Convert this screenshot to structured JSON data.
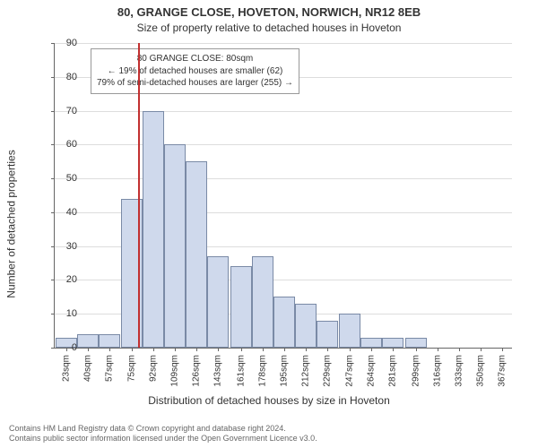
{
  "title_line1": "80, GRANGE CLOSE, HOVETON, NORWICH, NR12 8EB",
  "title_line2": "Size of property relative to detached houses in Hoveton",
  "ylabel": "Number of detached properties",
  "xlabel": "Distribution of detached houses by size in Hoveton",
  "footer_line1": "Contains HM Land Registry data © Crown copyright and database right 2024.",
  "footer_line2": "Contains public sector information licensed under the Open Government Licence v3.0.",
  "annotation": {
    "line1": "80 GRANGE CLOSE: 80sqm",
    "line2": "← 19% of detached houses are smaller (62)",
    "line3": "79% of semi-detached houses are larger (255) →"
  },
  "chart": {
    "type": "histogram",
    "bar_fill": "#cfd9ec",
    "bar_stroke": "#7a8aa6",
    "grid_color": "#dddddd",
    "axis_color": "#666666",
    "background": "#ffffff",
    "marker_color": "#c23030",
    "marker_x": 80,
    "xlim": [
      14,
      375
    ],
    "ylim": [
      0,
      90
    ],
    "ytick_step": 10,
    "bar_half_width": 8.5,
    "categories": [
      "23sqm",
      "40sqm",
      "57sqm",
      "75sqm",
      "92sqm",
      "109sqm",
      "126sqm",
      "143sqm",
      "161sqm",
      "178sqm",
      "195sqm",
      "212sqm",
      "229sqm",
      "247sqm",
      "264sqm",
      "281sqm",
      "299sqm",
      "316sqm",
      "333sqm",
      "350sqm",
      "367sqm"
    ],
    "x_numeric": [
      23,
      40,
      57,
      75,
      92,
      109,
      126,
      143,
      161,
      178,
      195,
      212,
      229,
      247,
      264,
      281,
      299,
      316,
      333,
      350,
      367
    ],
    "values": [
      3,
      4,
      4,
      44,
      70,
      60,
      55,
      27,
      24,
      27,
      15,
      13,
      8,
      10,
      3,
      3,
      3,
      0,
      0,
      0,
      0
    ],
    "title_fontsize": 13,
    "label_fontsize": 12,
    "tick_fontsize": 10
  }
}
